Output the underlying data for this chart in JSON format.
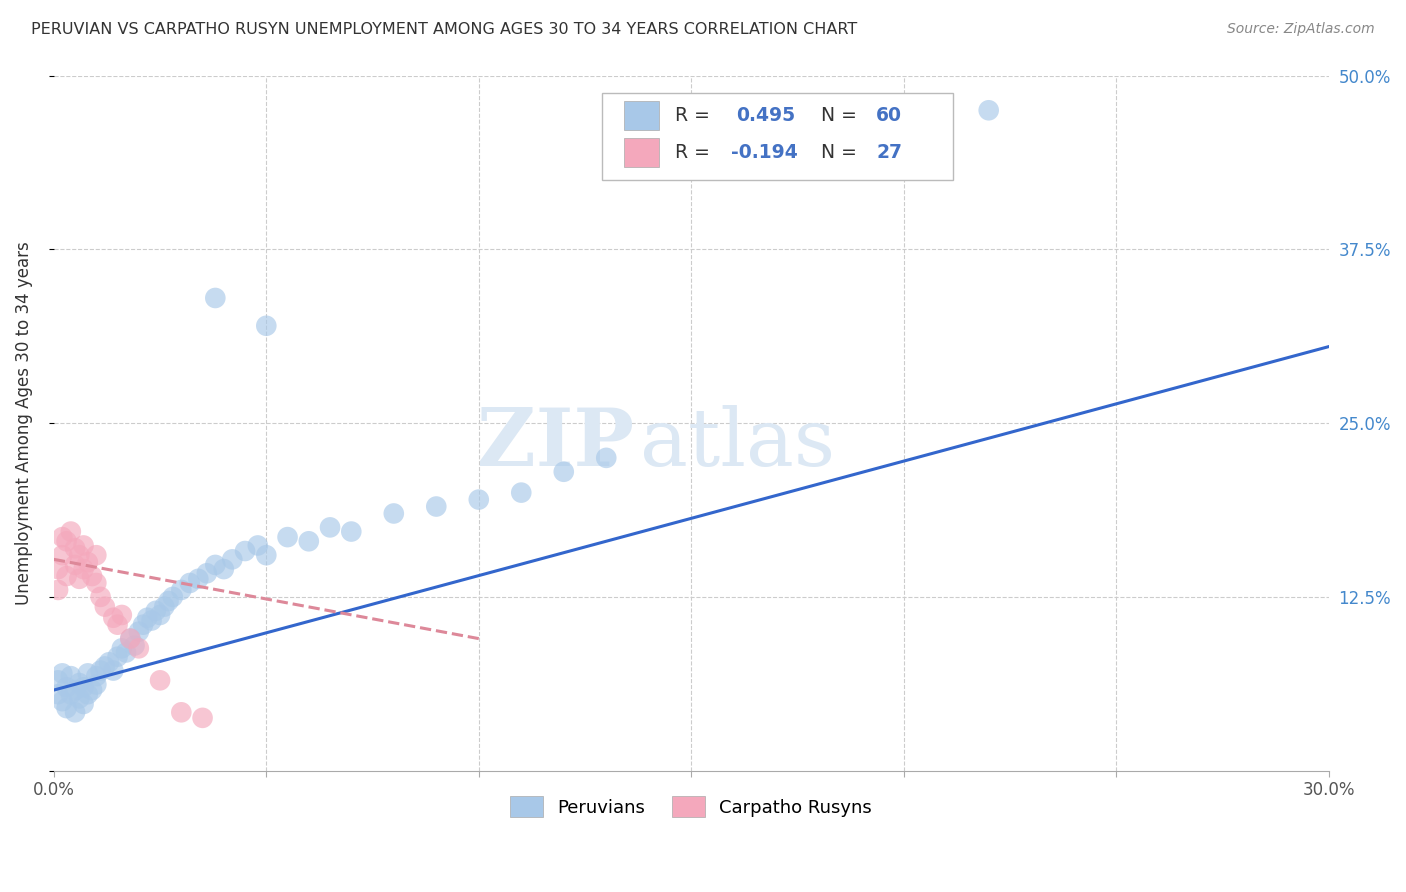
{
  "title": "PERUVIAN VS CARPATHO RUSYN UNEMPLOYMENT AMONG AGES 30 TO 34 YEARS CORRELATION CHART",
  "source": "Source: ZipAtlas.com",
  "ylabel": "Unemployment Among Ages 30 to 34 years",
  "xlim": [
    0.0,
    0.3
  ],
  "ylim": [
    0.0,
    0.5
  ],
  "xticks": [
    0.0,
    0.05,
    0.1,
    0.15,
    0.2,
    0.25,
    0.3
  ],
  "xtick_labels": [
    "0.0%",
    "",
    "",
    "",
    "",
    "",
    "30.0%"
  ],
  "yticks": [
    0.0,
    0.125,
    0.25,
    0.375,
    0.5
  ],
  "ytick_labels_right": [
    "",
    "12.5%",
    "25.0%",
    "37.5%",
    "50.0%"
  ],
  "blue_color": "#a8c8e8",
  "pink_color": "#f4a8bc",
  "blue_line_color": "#3366cc",
  "pink_line_color": "#dd8899",
  "watermark_zip": "ZIP",
  "watermark_atlas": "atlas",
  "watermark_color": "#dce8f4",
  "R_peruvian": 0.495,
  "N_peruvian": 60,
  "R_carpatho": -0.194,
  "N_carpatho": 27,
  "peruvian_x": [
    0.001,
    0.001,
    0.002,
    0.002,
    0.003,
    0.003,
    0.004,
    0.004,
    0.005,
    0.005,
    0.006,
    0.006,
    0.007,
    0.007,
    0.008,
    0.008,
    0.009,
    0.01,
    0.01,
    0.011,
    0.012,
    0.013,
    0.014,
    0.015,
    0.016,
    0.017,
    0.018,
    0.019,
    0.02,
    0.021,
    0.022,
    0.023,
    0.024,
    0.025,
    0.026,
    0.027,
    0.028,
    0.03,
    0.032,
    0.034,
    0.036,
    0.038,
    0.04,
    0.042,
    0.045,
    0.048,
    0.05,
    0.055,
    0.06,
    0.065,
    0.07,
    0.08,
    0.09,
    0.1,
    0.11,
    0.12,
    0.13,
    0.05,
    0.038,
    0.22
  ],
  "peruvian_y": [
    0.055,
    0.065,
    0.05,
    0.07,
    0.045,
    0.06,
    0.055,
    0.068,
    0.042,
    0.058,
    0.052,
    0.063,
    0.048,
    0.06,
    0.055,
    0.07,
    0.058,
    0.062,
    0.068,
    0.072,
    0.075,
    0.078,
    0.072,
    0.082,
    0.088,
    0.085,
    0.095,
    0.09,
    0.1,
    0.105,
    0.11,
    0.108,
    0.115,
    0.112,
    0.118,
    0.122,
    0.125,
    0.13,
    0.135,
    0.138,
    0.142,
    0.148,
    0.145,
    0.152,
    0.158,
    0.162,
    0.155,
    0.168,
    0.165,
    0.175,
    0.172,
    0.185,
    0.19,
    0.195,
    0.2,
    0.215,
    0.225,
    0.32,
    0.34,
    0.475
  ],
  "carpatho_x": [
    0.001,
    0.001,
    0.002,
    0.002,
    0.003,
    0.003,
    0.004,
    0.005,
    0.005,
    0.006,
    0.006,
    0.007,
    0.007,
    0.008,
    0.009,
    0.01,
    0.01,
    0.011,
    0.012,
    0.014,
    0.015,
    0.016,
    0.018,
    0.02,
    0.025,
    0.03,
    0.035
  ],
  "carpatho_y": [
    0.13,
    0.145,
    0.155,
    0.168,
    0.14,
    0.165,
    0.172,
    0.148,
    0.16,
    0.138,
    0.155,
    0.162,
    0.145,
    0.15,
    0.14,
    0.135,
    0.155,
    0.125,
    0.118,
    0.11,
    0.105,
    0.112,
    0.095,
    0.088,
    0.065,
    0.042,
    0.038
  ],
  "blue_trend_x": [
    0.0,
    0.3
  ],
  "blue_trend_y": [
    0.058,
    0.305
  ],
  "pink_trend_x": [
    0.0,
    0.1
  ],
  "pink_trend_y": [
    0.152,
    0.095
  ]
}
